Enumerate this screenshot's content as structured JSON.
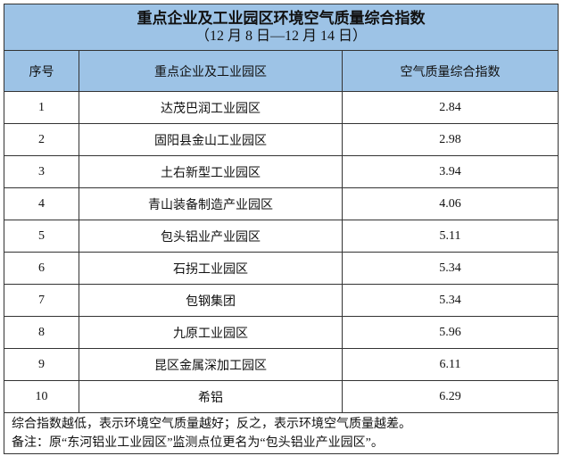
{
  "title": "重点企业及工业园区环境空气质量综合指数",
  "subtitle": "（12 月 8 日—12 月 14 日）",
  "header_color": "#9dc3e6",
  "columns": [
    "序号",
    "重点企业及工业园区",
    "空气质量综合指数"
  ],
  "rows": [
    {
      "no": "1",
      "name": "达茂巴润工业园区",
      "index": "2.84"
    },
    {
      "no": "2",
      "name": "固阳县金山工业园区",
      "index": "2.98"
    },
    {
      "no": "3",
      "name": "土右新型工业园区",
      "index": "3.94"
    },
    {
      "no": "4",
      "name": "青山装备制造产业园区",
      "index": "4.06"
    },
    {
      "no": "5",
      "name": "包头铝业产业园区",
      "index": "5.11"
    },
    {
      "no": "6",
      "name": "石拐工业园区",
      "index": "5.34"
    },
    {
      "no": "7",
      "name": "包钢集团",
      "index": "5.34"
    },
    {
      "no": "8",
      "name": "九原工业园区",
      "index": "5.96"
    },
    {
      "no": "9",
      "name": "昆区金属深加工园区",
      "index": "6.11"
    },
    {
      "no": "10",
      "name": "希铝",
      "index": "6.29"
    }
  ],
  "notes": [
    "综合指数越低，表示环境空气质量越好；反之，表示环境空气质量越差。",
    "备注：原“东河铝业工业园区”监测点位更名为“包头铝业产业园区”。"
  ]
}
